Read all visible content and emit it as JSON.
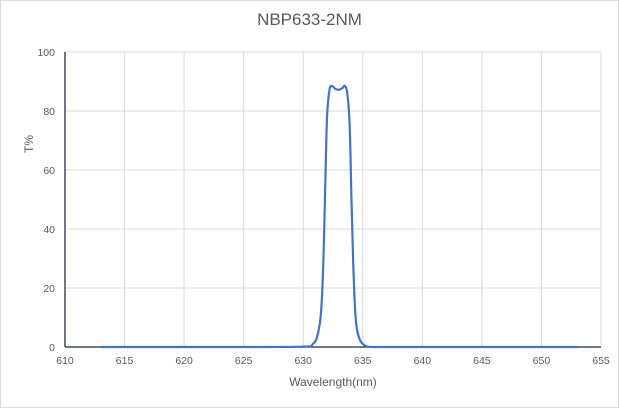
{
  "chart_data": {
    "type": "line",
    "title": "NBP633-2NM",
    "xlabel": "Wavelength(nm)",
    "ylabel": "T%",
    "xlim": [
      610,
      655
    ],
    "ylim": [
      0,
      100
    ],
    "x_ticks": [
      610,
      615,
      620,
      625,
      630,
      635,
      640,
      645,
      650,
      655
    ],
    "y_ticks": [
      0,
      20,
      40,
      60,
      80,
      100
    ],
    "grid": true,
    "legend": null,
    "series": [
      {
        "name": "NBP633-2NM",
        "color": "#4472C4",
        "x": [
          613,
          625,
          630,
          630.8,
          631.2,
          631.5,
          631.7,
          631.85,
          632.0,
          632.2,
          632.4,
          632.7,
          633.0,
          633.3,
          633.5,
          633.7,
          633.9,
          634.05,
          634.2,
          634.4,
          634.7,
          635.2,
          636,
          640,
          645,
          653
        ],
        "y": [
          0,
          0,
          0.1,
          1,
          4,
          12,
          30,
          55,
          78,
          87,
          88.5,
          87.5,
          87.2,
          87.8,
          88.5,
          86,
          75,
          50,
          28,
          10,
          3,
          0.5,
          0,
          0,
          0,
          0
        ]
      }
    ]
  }
}
